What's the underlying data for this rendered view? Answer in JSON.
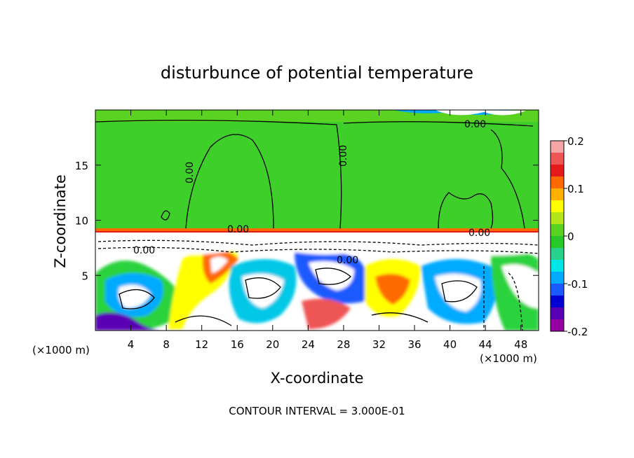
{
  "chart_data": {
    "type": "heatmap",
    "title": "disturbunce of potential temperature",
    "xlabel": "X-coordinate",
    "ylabel": "Z-coordinate",
    "x_unit_left": "(×1000 m)",
    "x_unit_right": "(×1000 m)",
    "xlim": [
      0,
      50
    ],
    "ylim": [
      0,
      20
    ],
    "x_ticks": [
      4,
      8,
      12,
      16,
      20,
      24,
      28,
      32,
      36,
      40,
      44,
      48
    ],
    "y_ticks": [
      5,
      10,
      15
    ],
    "colorbar": {
      "range": [
        -0.2,
        0.2
      ],
      "ticks": [
        "0.2",
        "0.1",
        "0",
        "-0.1",
        "-0.2"
      ],
      "colors": [
        "#f4a6a6",
        "#ee5555",
        "#e51a1a",
        "#ff6a00",
        "#ffb000",
        "#ffff00",
        "#b4e61a",
        "#5ad222",
        "#28c828",
        "#28d28c",
        "#00e6e6",
        "#00aaff",
        "#1a5aff",
        "#0000d2",
        "#5a00b4",
        "#9600a0"
      ]
    },
    "contour_labels": [
      "0.00",
      "0.00",
      "0.00",
      "0.00",
      "0.00",
      "0.00",
      "0.00"
    ],
    "contour_interval_text": "CONTOUR INTERVAL = 3.000E-01"
  }
}
